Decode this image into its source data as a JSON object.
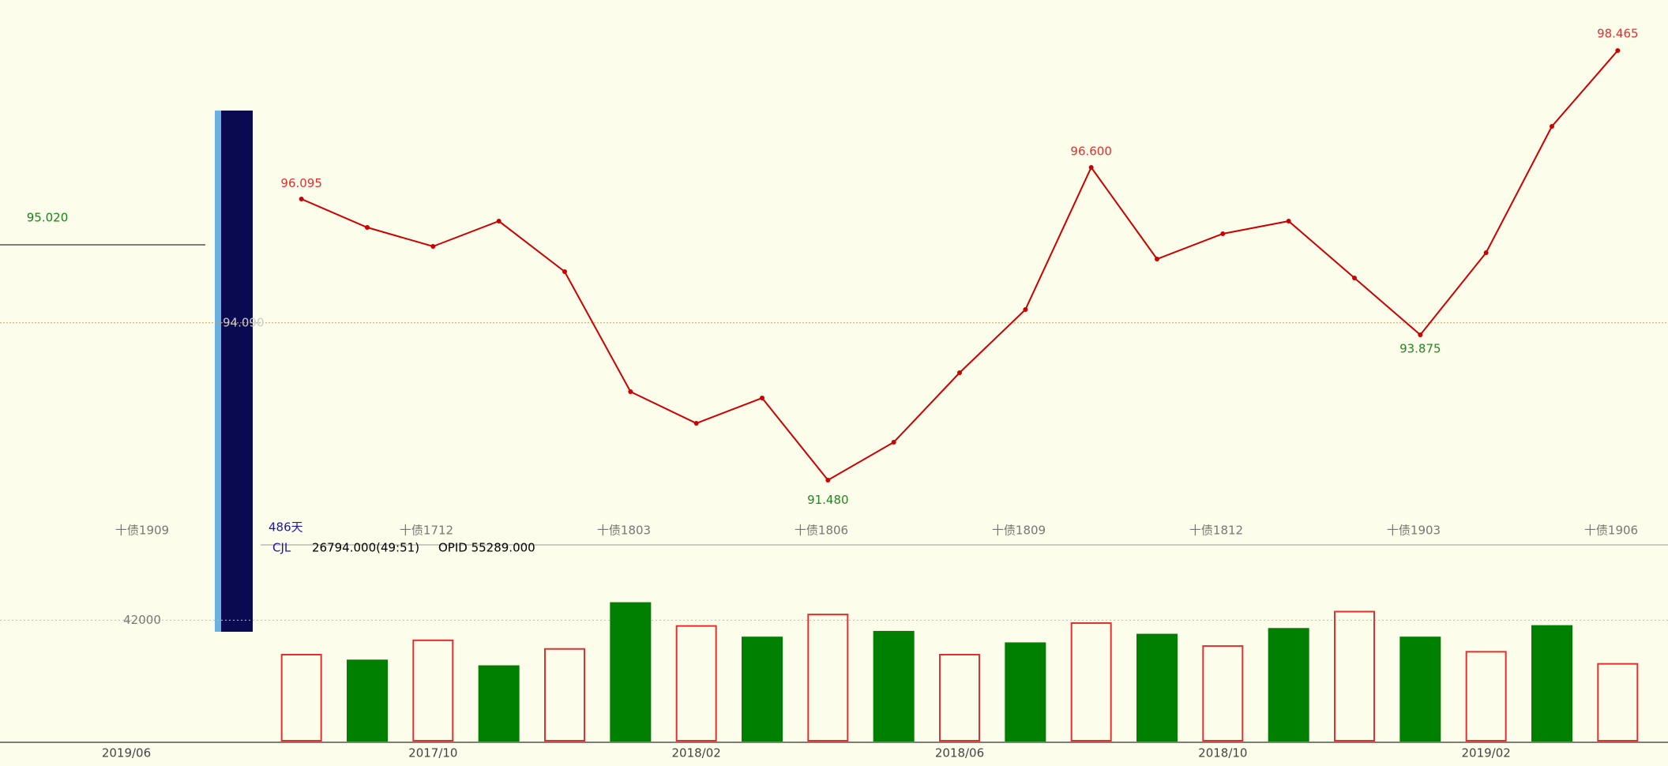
{
  "chart_data": {
    "type": "line",
    "categories": [
      null,
      null,
      "2017/10",
      null,
      null,
      null,
      "2018/02",
      null,
      null,
      null,
      "2018/06",
      null,
      null,
      null,
      "2018/10",
      null,
      null,
      null,
      "2019/02",
      null,
      null
    ],
    "values": [
      96.05,
      95.6,
      95.3,
      95.7,
      94.9,
      93.0,
      92.5,
      92.9,
      91.6,
      92.2,
      93.3,
      94.3,
      96.55,
      95.1,
      95.5,
      95.7,
      94.8,
      93.9,
      95.2,
      97.2,
      98.4
    ],
    "color": "#cc0000",
    "ylim": [
      91.2,
      98.7
    ],
    "yticks": [
      {
        "value": 94.09,
        "label": "94.090"
      }
    ],
    "annotations": [
      {
        "value": 98.465,
        "label": "98.465"
      },
      {
        "value": 96.6,
        "label": "96.600"
      },
      {
        "value": 96.095,
        "label": "96.095"
      },
      {
        "value": 93.875,
        "label": "93.875"
      },
      {
        "value": 91.48,
        "label": "91.480"
      }
    ],
    "contracts": [
      "十债1712",
      "十债1803",
      "十债1806",
      "十债1809",
      "十债1812",
      "十债1903",
      "十债1906"
    ],
    "days": "486天",
    "volume": {
      "indicator": "CJL",
      "reading": "26794.000(49:51)",
      "open_interest": "OPID 55289.000",
      "values": [
        30000,
        28000,
        35000,
        26000,
        32000,
        48000,
        40000,
        36000,
        44000,
        38000,
        30000,
        34000,
        41000,
        37000,
        33000,
        39000,
        45000,
        36000,
        31000,
        40000,
        26794
      ],
      "color": "#008000",
      "ylim": [
        0,
        60000
      ],
      "yticks": [
        42000
      ]
    }
  },
  "left_panel": {
    "low": "95.020",
    "contract": "十债1909",
    "date": "2019/06"
  }
}
